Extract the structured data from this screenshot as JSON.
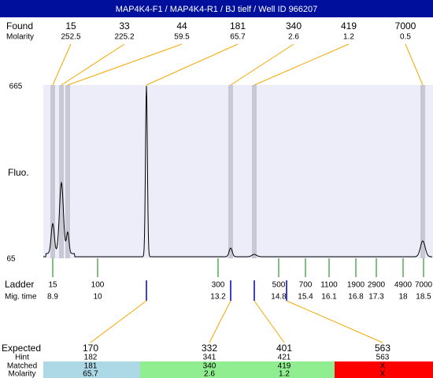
{
  "title": "MAP4K4-F1 / MAP4K4-R1 / BJ tielf / Well ID 966207",
  "found": {
    "label": "Found",
    "molarity_label": "Molarity",
    "sizes": [
      15,
      33,
      44,
      181,
      340,
      419,
      7000
    ],
    "molarity": [
      252.5,
      225.2,
      59.5,
      65.7,
      2.6,
      1.2,
      0.5
    ]
  },
  "axis": {
    "label": "Fluo.",
    "ticks": [
      665,
      65
    ]
  },
  "ladder": {
    "label": "Ladder",
    "mig_label": "Mig. time",
    "sizes": [
      15,
      100,
      300,
      500,
      700,
      1100,
      1900,
      2900,
      4900,
      7000
    ],
    "mig_times": [
      8.9,
      10,
      13.2,
      14.8,
      15.4,
      16.1,
      16.8,
      17.3,
      18,
      18.5
    ]
  },
  "results": {
    "expected_label": "Expected",
    "hint_label": "Hint",
    "matched_label": "Matched",
    "molarity_label": "Molarity",
    "expected": [
      170,
      332,
      401,
      563
    ],
    "hint": [
      182,
      341,
      421,
      563
    ],
    "matched": [
      181,
      340,
      419,
      "X"
    ],
    "molarity": [
      65.7,
      2.6,
      1.2,
      "X"
    ]
  }
}
